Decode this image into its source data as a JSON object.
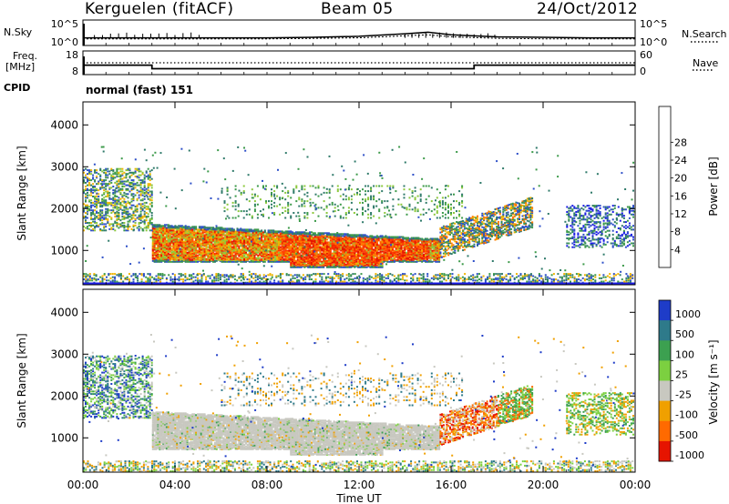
{
  "header": {
    "station": "Kerguelen (fitACF)",
    "beam": "Beam 05",
    "date": "24/Oct/2012"
  },
  "side_labels": {
    "nsky": "N.Sky",
    "nsearch": "N.Search",
    "freq": "Freq.",
    "freq_unit": "[MHz]",
    "nave": "Nave",
    "cpid": "CPID"
  },
  "cpid_value": "normal (fast) 151",
  "chart_data": [
    {
      "type": "line",
      "panel": "noise",
      "yticks_left": [
        "10^5",
        "10^0"
      ],
      "yticks_right": [
        "10^5",
        "10^0"
      ],
      "x": [
        "00:00",
        "02:00",
        "04:00",
        "06:00",
        "08:00",
        "10:00",
        "12:00",
        "14:00",
        "15:00",
        "16:00",
        "18:00",
        "20:00",
        "22:00",
        "24:00"
      ],
      "series": [
        {
          "values": [
            1.5,
            1.5,
            1.5,
            1.5,
            1.5,
            1.6,
            1.8,
            2.3,
            2.6,
            2.1,
            1.7,
            1.6,
            1.5,
            1.5
          ]
        },
        {
          "values": [
            1.3,
            1.3,
            1.3,
            1.3,
            1.3,
            1.4,
            1.5,
            1.9,
            2.1,
            1.7,
            1.4,
            1.3,
            1.3,
            1.3
          ]
        }
      ],
      "ylim": [
        0,
        5
      ]
    },
    {
      "type": "line",
      "panel": "frequency",
      "yticks_left": [
        "18",
        "8"
      ],
      "yticks_right": [
        "60",
        "0"
      ],
      "x": [
        "00:00",
        "03:00",
        "03:00",
        "17:00",
        "17:00",
        "24:00"
      ],
      "series": [
        {
          "values": [
            12,
            12,
            10.5,
            10.5,
            12,
            12
          ]
        },
        {
          "values": [
            13,
            13,
            13,
            13,
            13,
            13
          ]
        }
      ],
      "ylim": [
        8,
        18
      ]
    },
    {
      "type": "heatmap",
      "panel": "power",
      "ylabel": "Slant Range [km]",
      "yticks": [
        "1000",
        "2000",
        "3000",
        "4000"
      ],
      "ylim": [
        180,
        4550
      ],
      "colorbar_label": "Power [dB]",
      "colorbar_ticks": [
        "4",
        "8",
        "12",
        "16",
        "20",
        "24",
        "28"
      ],
      "colors": [
        "#1e1ee6",
        "#2e50c8",
        "#2f7a6a",
        "#3c9a4a",
        "#8cc83c",
        "#f0b400",
        "#ff7800",
        "#ff3c00",
        "#e61400"
      ]
    },
    {
      "type": "heatmap",
      "panel": "velocity",
      "ylabel": "Slant Range [km]",
      "xlabel": "Time UT",
      "xticks": [
        "00:00",
        "04:00",
        "08:00",
        "12:00",
        "16:00",
        "20:00",
        "00:00"
      ],
      "yticks": [
        "1000",
        "2000",
        "3000",
        "4000"
      ],
      "ylim": [
        180,
        4550
      ],
      "colorbar_label": "Velocity [m s⁻¹]",
      "colorbar_ticks": [
        "1000",
        "500",
        "100",
        "25",
        "-25",
        "-100",
        "-500",
        "-1000"
      ],
      "colors": [
        "#1e3cc8",
        "#2e7a8a",
        "#3ca050",
        "#7cd040",
        "#c8c8c0",
        "#f0a000",
        "#ff6a00",
        "#e61400"
      ]
    }
  ]
}
